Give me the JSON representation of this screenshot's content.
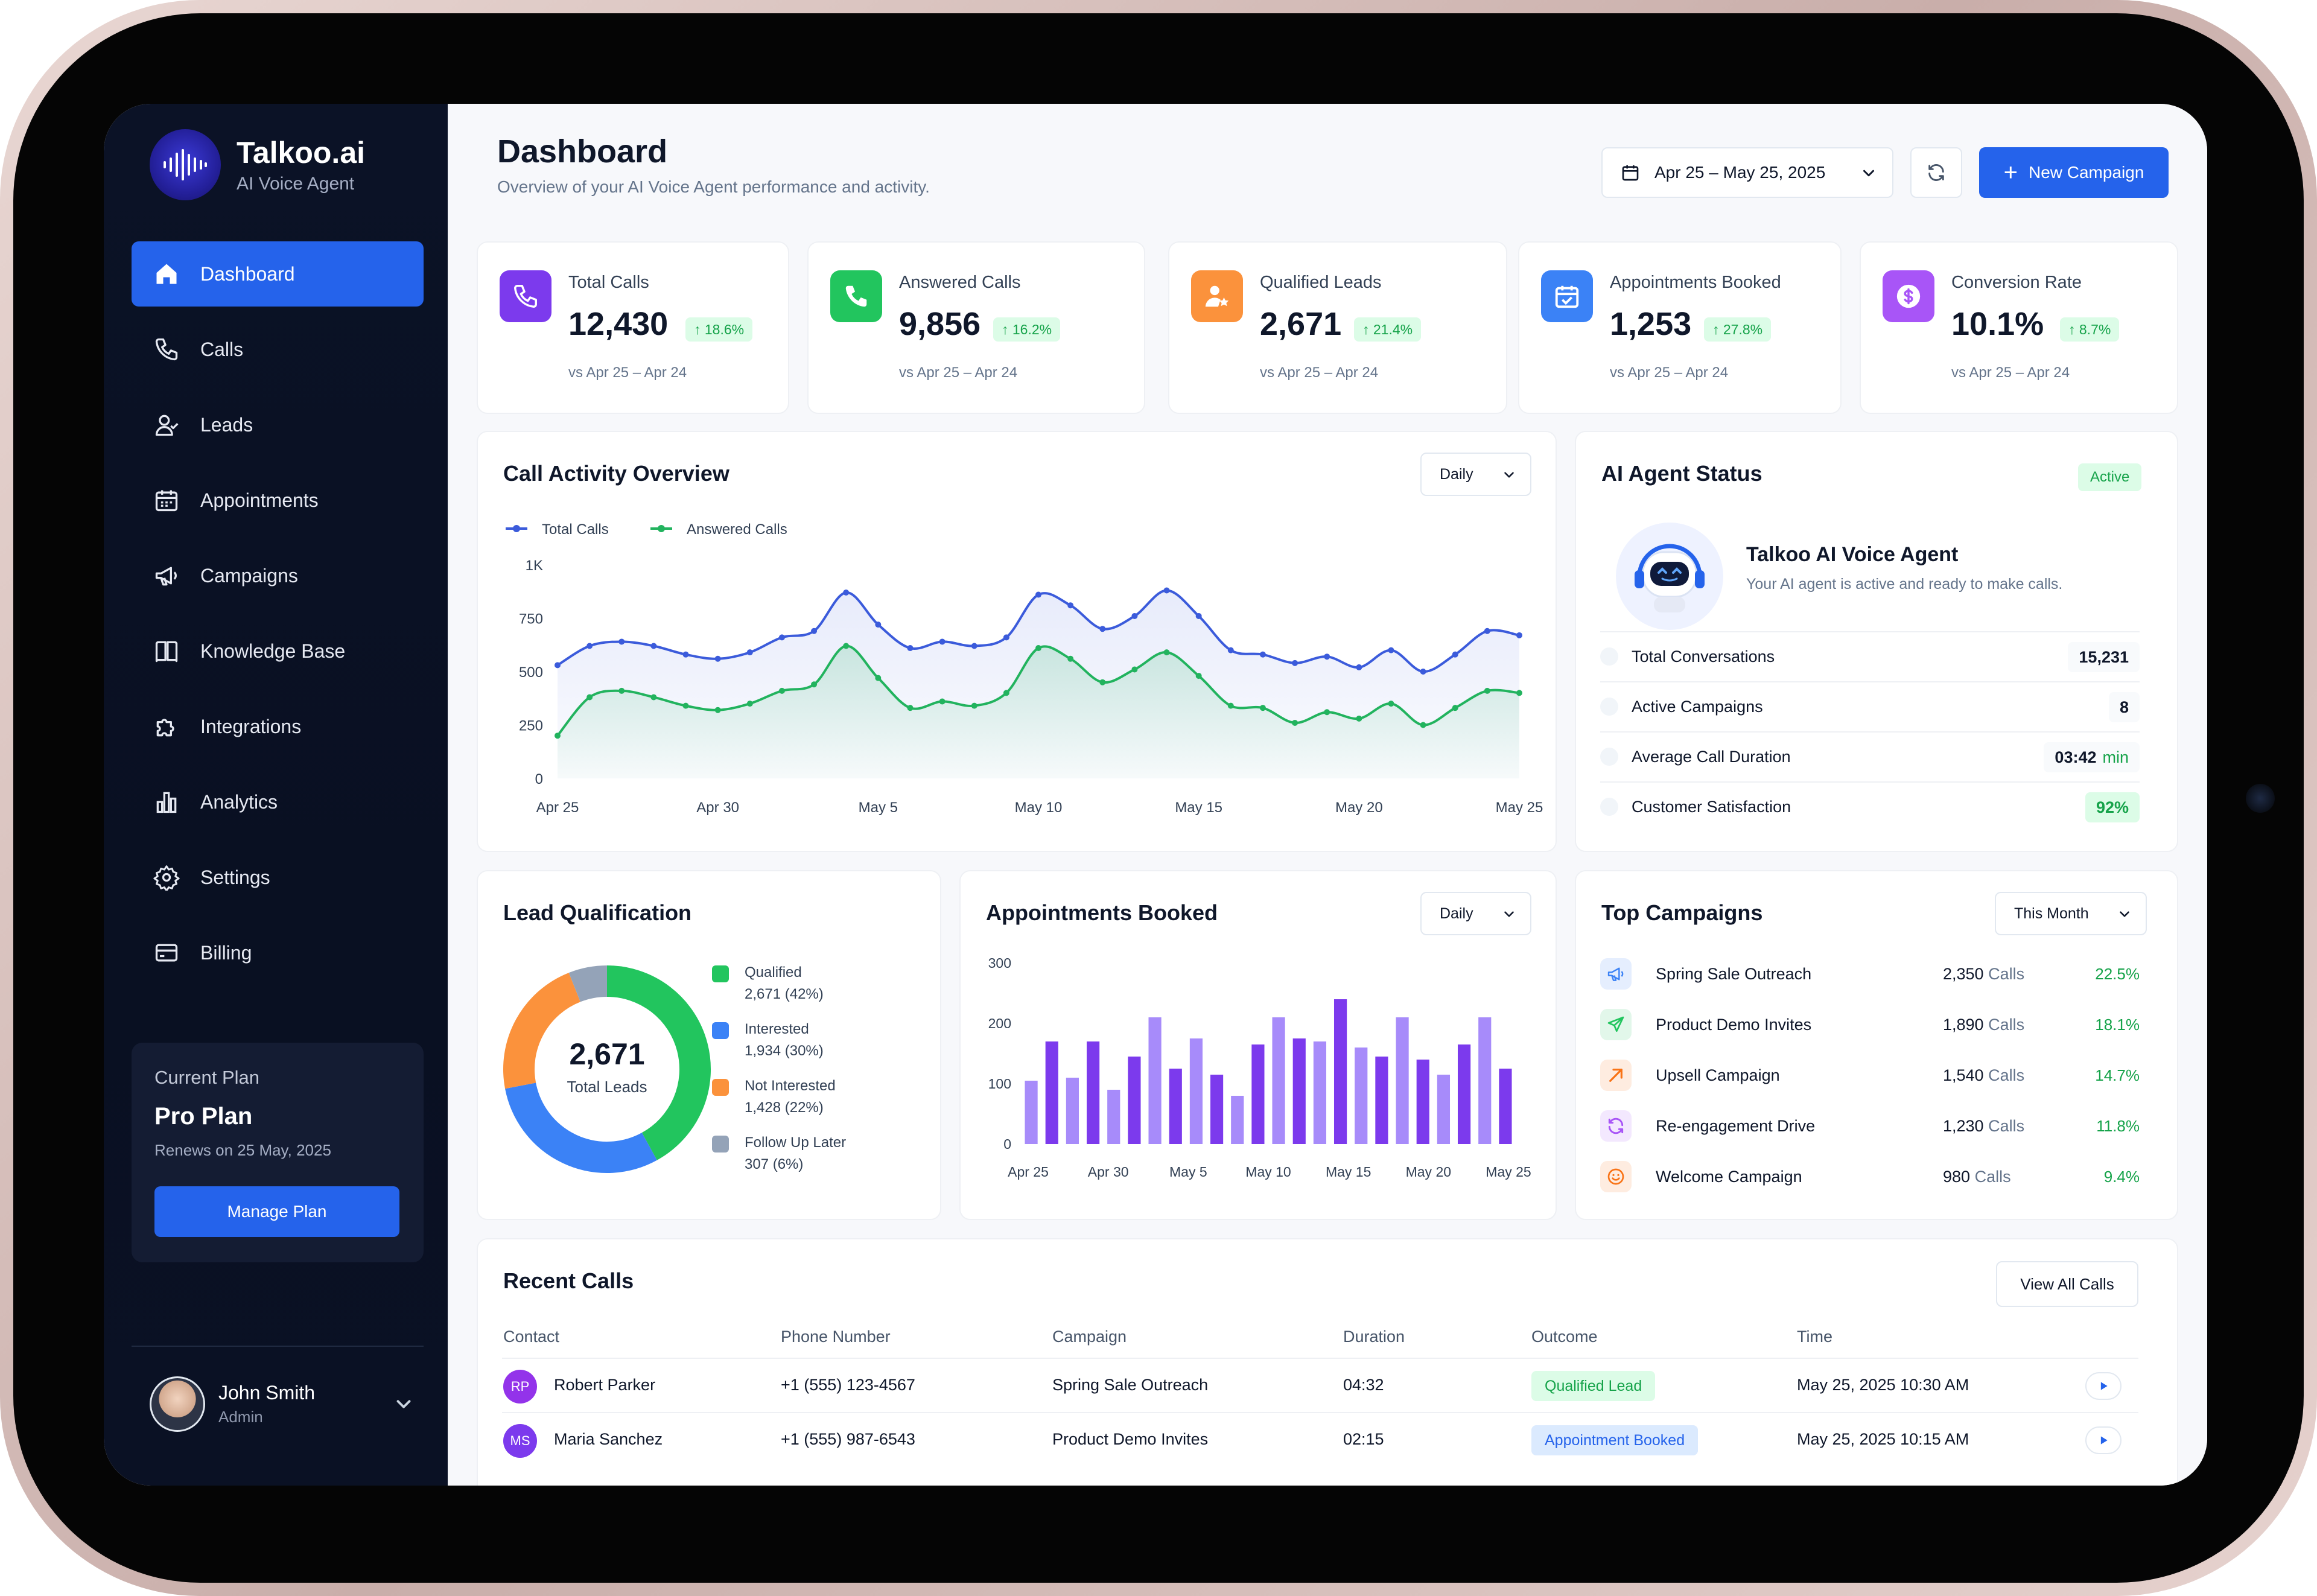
{
  "brand": {
    "name": "Talkoo.ai",
    "subtitle": "AI Voice Agent"
  },
  "nav": [
    {
      "label": "Dashboard",
      "icon": "home-icon",
      "active": true
    },
    {
      "label": "Calls",
      "icon": "phone-icon"
    },
    {
      "label": "Leads",
      "icon": "users-icon"
    },
    {
      "label": "Appointments",
      "icon": "calendar-icon"
    },
    {
      "label": "Campaigns",
      "icon": "megaphone-icon"
    },
    {
      "label": "Knowledge Base",
      "icon": "book-icon"
    },
    {
      "label": "Integrations",
      "icon": "puzzle-icon"
    },
    {
      "label": "Analytics",
      "icon": "bar-chart-icon"
    },
    {
      "label": "Settings",
      "icon": "gear-icon"
    },
    {
      "label": "Billing",
      "icon": "credit-card-icon"
    }
  ],
  "plan": {
    "label": "Current Plan",
    "name": "Pro Plan",
    "renews": "Renews on 25 May, 2025",
    "button": "Manage Plan"
  },
  "user": {
    "name": "John Smith",
    "role": "Admin"
  },
  "header": {
    "title": "Dashboard",
    "subtitle": "Overview of your AI Voice Agent performance and activity.",
    "date_range": "Apr 25 – May 25, 2025",
    "new_campaign": "New Campaign"
  },
  "kpis": [
    {
      "label": "Total Calls",
      "value": "12,430",
      "change": "↑ 18.6%",
      "vs": "vs Apr 25 – Apr 24",
      "color": "#7c3aed",
      "icon": "phone-icon"
    },
    {
      "label": "Answered Calls",
      "value": "9,856",
      "change": "↑ 16.2%",
      "vs": "vs Apr 25 – Apr 24",
      "color": "#22c55e",
      "icon": "phone-answered-icon"
    },
    {
      "label": "Qualified Leads",
      "value": "2,671",
      "change": "↑ 21.4%",
      "vs": "vs Apr 25 – Apr 24",
      "color": "#fb923c",
      "icon": "user-star-icon"
    },
    {
      "label": "Appointments Booked",
      "value": "1,253",
      "change": "↑ 27.8%",
      "vs": "vs Apr 25 – Apr 24",
      "color": "#3b82f6",
      "icon": "calendar-check-icon"
    },
    {
      "label": "Conversion Rate",
      "value": "10.1%",
      "change": "↑ 8.7%",
      "vs": "vs Apr 25 – Apr 24",
      "color": "#a855f7",
      "icon": "dollar-icon"
    }
  ],
  "call_activity": {
    "title": "Call Activity Overview",
    "filter": "Daily",
    "legend": [
      "Total Calls",
      "Answered Calls"
    ]
  },
  "agent": {
    "title": "AI Agent Status",
    "status": "Active",
    "name": "Talkoo AI Voice Agent",
    "description": "Your AI agent is active and ready to make calls.",
    "stats": [
      {
        "label": "Total Conversations",
        "value": "15,231",
        "unit": ""
      },
      {
        "label": "Active Campaigns",
        "value": "8",
        "unit": ""
      },
      {
        "label": "Average Call Duration",
        "value": "03:42",
        "unit": "min"
      },
      {
        "label": "Customer Satisfaction",
        "value": "92%",
        "unit": ""
      }
    ]
  },
  "lead_qual": {
    "title": "Lead Qualification",
    "total": "2,671",
    "total_label": "Total Leads",
    "items": [
      {
        "label": "Qualified",
        "value": "2,671 (42%)",
        "color": "#22c55e"
      },
      {
        "label": "Interested",
        "value": "1,934 (30%)",
        "color": "#3b82f6"
      },
      {
        "label": "Not Interested",
        "value": "1,428 (22%)",
        "color": "#fb923c"
      },
      {
        "label": "Follow Up Later",
        "value": "307 (6%)",
        "color": "#94a3b8"
      }
    ]
  },
  "appointments": {
    "title": "Appointments Booked",
    "filter": "Daily"
  },
  "top_campaigns": {
    "title": "Top Campaigns",
    "filter": "This Month",
    "unit": "Calls",
    "rows": [
      {
        "name": "Spring Sale Outreach",
        "calls": "2,350",
        "pct": "22.5%",
        "icon": "megaphone-icon",
        "color": "#3b82f6"
      },
      {
        "name": "Product Demo Invites",
        "calls": "1,890",
        "pct": "18.1%",
        "icon": "send-icon",
        "color": "#22c55e"
      },
      {
        "name": "Upsell Campaign",
        "calls": "1,540",
        "pct": "14.7%",
        "icon": "trend-arrow-icon",
        "color": "#f97316"
      },
      {
        "name": "Re-engagement Drive",
        "calls": "1,230",
        "pct": "11.8%",
        "icon": "refresh-icon",
        "color": "#a855f7"
      },
      {
        "name": "Welcome Campaign",
        "calls": "980",
        "pct": "9.4%",
        "icon": "smile-icon",
        "color": "#f97316"
      }
    ]
  },
  "recent_calls": {
    "title": "Recent Calls",
    "view_all": "View All Calls",
    "columns": [
      "Contact",
      "Phone Number",
      "Campaign",
      "Duration",
      "Outcome",
      "Time"
    ],
    "rows": [
      {
        "initials": "RP",
        "avatar_color": "#9333ea",
        "contact": "Robert Parker",
        "phone": "+1 (555) 123-4567",
        "campaign": "Spring Sale Outreach",
        "duration": "04:32",
        "outcome": "Qualified Lead",
        "outcome_bg": "#dcfce7",
        "outcome_fg": "#16a34a",
        "time": "May 25, 2025 10:30 AM"
      },
      {
        "initials": "MS",
        "avatar_color": "#7c3aed",
        "contact": "Maria Sanchez",
        "phone": "+1 (555) 987-6543",
        "campaign": "Product Demo Invites",
        "duration": "02:15",
        "outcome": "Appointment Booked",
        "outcome_bg": "#dbeafe",
        "outcome_fg": "#2563eb",
        "time": "May 25, 2025 10:15 AM"
      }
    ]
  },
  "chart_data": [
    {
      "type": "line",
      "title": "Call Activity Overview",
      "x": [
        "Apr 25",
        "Apr 26",
        "Apr 27",
        "Apr 28",
        "Apr 29",
        "Apr 30",
        "May 1",
        "May 2",
        "May 3",
        "May 4",
        "May 5",
        "May 6",
        "May 7",
        "May 8",
        "May 9",
        "May 10",
        "May 11",
        "May 12",
        "May 13",
        "May 14",
        "May 15",
        "May 16",
        "May 17",
        "May 18",
        "May 19",
        "May 20",
        "May 21",
        "May 22",
        "May 23",
        "May 24",
        "May 25"
      ],
      "x_ticks": [
        "Apr 25",
        "Apr 30",
        "May 5",
        "May 10",
        "May 15",
        "May 20",
        "May 25"
      ],
      "y_ticks": [
        "0",
        "250",
        "500",
        "750",
        "1K"
      ],
      "ylim": [
        0,
        1000
      ],
      "grid": false,
      "legend": "top-left",
      "series": [
        {
          "name": "Total Calls",
          "color": "#3b5bdb",
          "values": [
            530,
            620,
            640,
            620,
            580,
            560,
            590,
            660,
            690,
            870,
            720,
            610,
            640,
            620,
            660,
            860,
            810,
            700,
            760,
            880,
            760,
            600,
            580,
            540,
            570,
            520,
            600,
            500,
            580,
            690,
            670
          ]
        },
        {
          "name": "Answered Calls",
          "color": "#22b35e",
          "values": [
            200,
            380,
            410,
            380,
            340,
            320,
            350,
            410,
            440,
            620,
            470,
            330,
            360,
            340,
            400,
            610,
            560,
            450,
            510,
            590,
            480,
            340,
            330,
            260,
            310,
            280,
            350,
            250,
            330,
            410,
            400
          ]
        }
      ]
    },
    {
      "type": "pie",
      "title": "Lead Qualification",
      "categories": [
        "Qualified",
        "Interested",
        "Not Interested",
        "Follow Up Later"
      ],
      "values": [
        42,
        30,
        22,
        6
      ],
      "colors": [
        "#22c55e",
        "#3b82f6",
        "#fb923c",
        "#94a3b8"
      ]
    },
    {
      "type": "bar",
      "title": "Appointments Booked",
      "x_ticks": [
        "Apr 25",
        "Apr 30",
        "May 5",
        "May 10",
        "May 15",
        "May 20",
        "May 25"
      ],
      "y_ticks": [
        "0",
        "100",
        "200",
        "300"
      ],
      "ylim": [
        0,
        300
      ],
      "values": [
        105,
        170,
        110,
        170,
        90,
        145,
        210,
        125,
        175,
        115,
        80,
        165,
        210,
        175,
        170,
        240,
        160,
        145,
        210,
        140,
        115,
        165,
        210,
        125
      ],
      "colors": [
        "#a78bfa",
        "#7c3aed"
      ]
    }
  ]
}
